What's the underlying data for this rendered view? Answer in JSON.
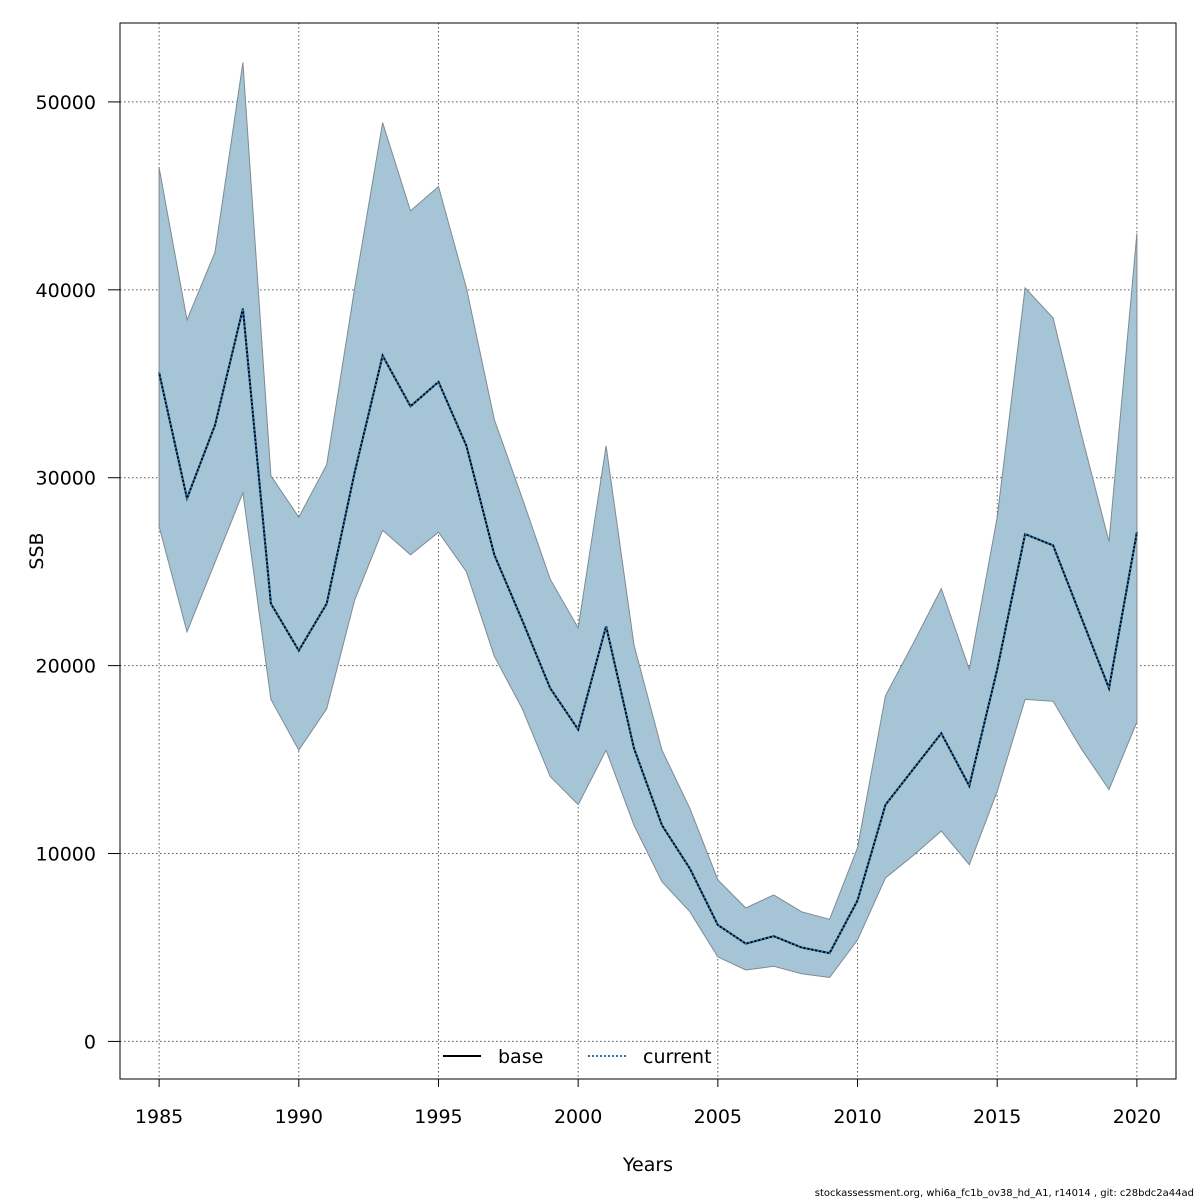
{
  "chart_data": {
    "type": "line",
    "xlabel": "Years",
    "ylabel": "SSB",
    "xlim": [
      1983.6,
      2021.4
    ],
    "ylim": [
      -2000,
      54200
    ],
    "x_ticks": [
      1985,
      1990,
      1995,
      2000,
      2005,
      2010,
      2015,
      2020
    ],
    "y_ticks": [
      0,
      10000,
      20000,
      30000,
      40000,
      50000
    ],
    "grid": true,
    "grid_style": "dotted",
    "legend_position": "bottom-center",
    "x": [
      1985,
      1986,
      1987,
      1988,
      1989,
      1990,
      1991,
      1992,
      1993,
      1994,
      1995,
      1996,
      1997,
      1998,
      1999,
      2000,
      2001,
      2002,
      2003,
      2004,
      2005,
      2006,
      2007,
      2008,
      2009,
      2010,
      2011,
      2012,
      2013,
      2014,
      2015,
      2016,
      2017,
      2018,
      2019,
      2020
    ],
    "series": [
      {
        "name": "base",
        "style": "solid",
        "color": "#000000",
        "values": [
          35600,
          28900,
          32800,
          39000,
          23300,
          20800,
          23300,
          30300,
          36500,
          33800,
          35100,
          31700,
          25900,
          22400,
          18800,
          16600,
          22100,
          15600,
          11500,
          9200,
          6200,
          5200,
          5600,
          5000,
          4700,
          7500,
          12600,
          14500,
          16400,
          13600,
          19800,
          27000,
          26400,
          22600,
          18800,
          27100
        ]
      },
      {
        "name": "current",
        "style": "dotted",
        "color": "#1f77b4",
        "values": [
          35600,
          28900,
          32800,
          39000,
          23300,
          20800,
          23300,
          30300,
          36500,
          33800,
          35100,
          31700,
          25900,
          22400,
          18800,
          16600,
          22100,
          15600,
          11500,
          9200,
          6200,
          5200,
          5600,
          5000,
          4700,
          7500,
          12600,
          14500,
          16400,
          13600,
          19800,
          27000,
          26400,
          22600,
          18800,
          27100
        ]
      }
    ],
    "confidence_band": {
      "upper": [
        46500,
        38400,
        42000,
        52100,
        30100,
        27900,
        30700,
        40100,
        48900,
        44200,
        45500,
        40100,
        33100,
        28900,
        24600,
        22000,
        31700,
        21100,
        15500,
        12400,
        8600,
        7100,
        7800,
        6900,
        6500,
        10300,
        18400,
        21200,
        24100,
        19800,
        27900,
        40100,
        38500,
        32400,
        26600,
        43000
      ],
      "lower": [
        27400,
        21800,
        25500,
        29200,
        18200,
        15500,
        17700,
        23500,
        27200,
        25900,
        27100,
        25000,
        20500,
        17700,
        14100,
        12600,
        15500,
        11500,
        8500,
        6900,
        4500,
        3800,
        4000,
        3600,
        3400,
        5400,
        8700,
        9900,
        11200,
        9400,
        13300,
        18200,
        18100,
        15600,
        13400,
        17000
      ],
      "fill_color": "#a5c4d5",
      "stroke_color": "#7f8a92"
    }
  },
  "footer_note": "stockassessment.org, whi6a_fc1b_ov38_hd_A1, r14014 , git: c28bdc2a44ad"
}
